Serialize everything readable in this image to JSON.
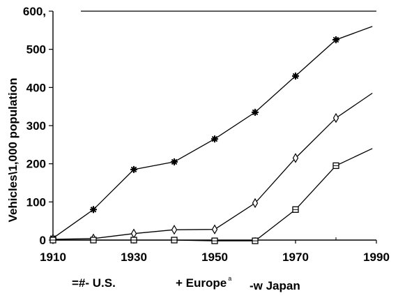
{
  "chart_data": {
    "type": "line",
    "ylabel": "Vehicles\\1,000 population",
    "xlim": [
      1910,
      1990
    ],
    "ylim": [
      0,
      600
    ],
    "x_ticks": [
      "1910",
      "1930",
      "1950",
      "1970",
      "1990"
    ],
    "y_ticks": [
      "0",
      "100",
      "200",
      "300",
      "400",
      "500",
      "600,"
    ],
    "grid": false,
    "legend_position": "bottom",
    "series": [
      {
        "name": "U.S.",
        "legend_prefix": "=#-",
        "marker": "star",
        "points": [
          [
            1910,
            5
          ],
          [
            1920,
            80
          ],
          [
            1930,
            185
          ],
          [
            1940,
            205
          ],
          [
            1950,
            265
          ],
          [
            1960,
            335
          ],
          [
            1970,
            430
          ],
          [
            1980,
            525
          ],
          [
            1989,
            560
          ]
        ]
      },
      {
        "name": "Europe",
        "legend_prefix": "+",
        "legend_superscript": "a",
        "marker": "diamond",
        "points": [
          [
            1910,
            2
          ],
          [
            1920,
            4
          ],
          [
            1930,
            17
          ],
          [
            1940,
            27
          ],
          [
            1950,
            28
          ],
          [
            1960,
            97
          ],
          [
            1970,
            215
          ],
          [
            1980,
            320
          ],
          [
            1989,
            385
          ]
        ]
      },
      {
        "name": "Japan",
        "legend_prefix": "-w",
        "marker": "square",
        "points": [
          [
            1910,
            0
          ],
          [
            1920,
            0
          ],
          [
            1930,
            0
          ],
          [
            1940,
            0
          ],
          [
            1950,
            -2
          ],
          [
            1960,
            -2
          ],
          [
            1970,
            80
          ],
          [
            1980,
            195
          ],
          [
            1989,
            240
          ]
        ]
      }
    ]
  }
}
